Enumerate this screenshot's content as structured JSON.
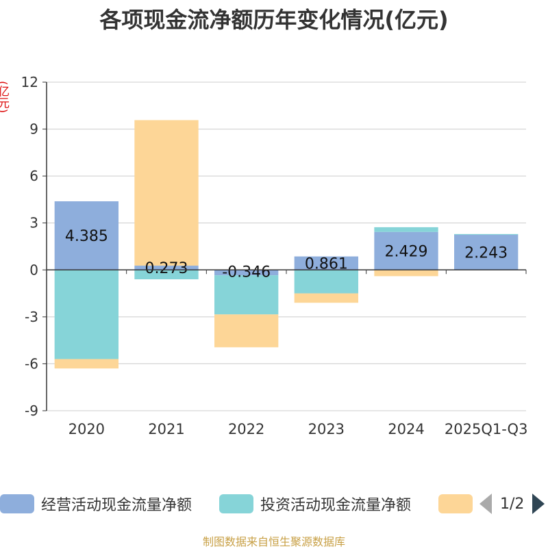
{
  "chart_data": {
    "type": "bar",
    "stacked": true,
    "title": "各项现金流净额历年变化情况(亿元)",
    "ylabel": "(亿元)",
    "ylim": [
      -9,
      12
    ],
    "yticks": [
      -9,
      -6,
      -3,
      0,
      3,
      6,
      9,
      12
    ],
    "categories": [
      "2020",
      "2021",
      "2022",
      "2023",
      "2024",
      "2025Q1-Q3"
    ],
    "series": [
      {
        "name": "经营活动现金流量净额",
        "color": "#8eaedc",
        "values": [
          4.385,
          0.273,
          -0.346,
          0.861,
          2.429,
          2.243
        ]
      },
      {
        "name": "投资活动现金流量净额",
        "color": "#86d4d8",
        "values": [
          -5.7,
          -0.6,
          -2.5,
          -1.5,
          0.3,
          0.05
        ]
      },
      {
        "name": "",
        "color": "#fdd697",
        "values": [
          -0.6,
          9.3,
          -2.1,
          -0.6,
          -0.4,
          0
        ]
      }
    ],
    "data_labels": [
      "4.385",
      "0.273",
      "-0.346",
      "0.861",
      "2.429",
      "2.243"
    ],
    "grid": true,
    "legend_position": "bottom"
  },
  "legend": {
    "page_indicator": "1/2"
  },
  "source": "制图数据来自恒生聚源数据库"
}
